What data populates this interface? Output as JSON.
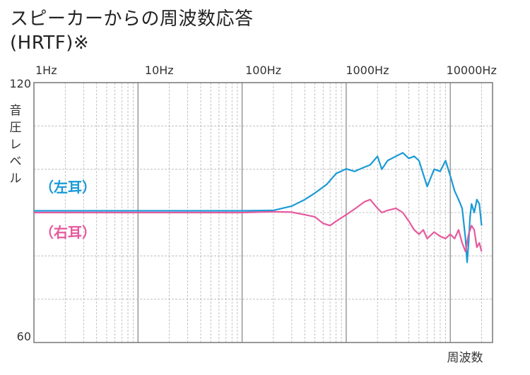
{
  "title_line1": "スピーカーからの周波数応答",
  "title_line2": "(HRTF)※",
  "chart_data": {
    "type": "line",
    "x_scale": "log",
    "xlim": [
      1,
      20000
    ],
    "ylim": [
      60,
      120
    ],
    "x_ticks": [
      1,
      10,
      100,
      1000,
      10000
    ],
    "x_tick_labels": [
      "1Hz",
      "10Hz",
      "100Hz",
      "1000Hz",
      "10000Hz"
    ],
    "y_tick_labels": [
      "120",
      "60"
    ],
    "ylabel": "音圧レベル",
    "xlabel": "周波数",
    "grid": true,
    "series": [
      {
        "name": "（左耳）",
        "color": "#1a9ad6",
        "points": [
          [
            1,
            90.4
          ],
          [
            10,
            90.4
          ],
          [
            100,
            90.4
          ],
          [
            200,
            90.5
          ],
          [
            300,
            91.5
          ],
          [
            400,
            93
          ],
          [
            500,
            94.5
          ],
          [
            650,
            96.5
          ],
          [
            800,
            99
          ],
          [
            1000,
            100.1
          ],
          [
            1200,
            99.5
          ],
          [
            1500,
            100.5
          ],
          [
            1700,
            101
          ],
          [
            2000,
            103
          ],
          [
            2200,
            100
          ],
          [
            2500,
            102
          ],
          [
            3000,
            103
          ],
          [
            3500,
            103.8
          ],
          [
            4000,
            102.5
          ],
          [
            4500,
            103
          ],
          [
            5000,
            102
          ],
          [
            6000,
            96
          ],
          [
            7000,
            100
          ],
          [
            8000,
            99.5
          ],
          [
            9000,
            102
          ],
          [
            10000,
            98.5
          ],
          [
            11000,
            95
          ],
          [
            12000,
            93
          ],
          [
            13000,
            91
          ],
          [
            14000,
            84
          ],
          [
            14500,
            78.5
          ],
          [
            15000,
            83
          ],
          [
            15500,
            89
          ],
          [
            16000,
            92
          ],
          [
            17000,
            90
          ],
          [
            18000,
            93
          ],
          [
            19000,
            92
          ],
          [
            20000,
            87
          ]
        ]
      },
      {
        "name": "（右耳）",
        "color": "#e65a9e",
        "points": [
          [
            1,
            90
          ],
          [
            10,
            90
          ],
          [
            100,
            90
          ],
          [
            200,
            90.2
          ],
          [
            300,
            90.1
          ],
          [
            400,
            89.5
          ],
          [
            500,
            89
          ],
          [
            600,
            87.5
          ],
          [
            700,
            87
          ],
          [
            800,
            88
          ],
          [
            1000,
            89.5
          ],
          [
            1200,
            90.8
          ],
          [
            1500,
            92.5
          ],
          [
            1700,
            93
          ],
          [
            2000,
            91
          ],
          [
            2200,
            90
          ],
          [
            2500,
            90.5
          ],
          [
            3000,
            91
          ],
          [
            3500,
            90
          ],
          [
            4000,
            88
          ],
          [
            4500,
            86
          ],
          [
            5000,
            85
          ],
          [
            5500,
            86
          ],
          [
            6000,
            84
          ],
          [
            7000,
            85.5
          ],
          [
            8000,
            84.5
          ],
          [
            9000,
            84
          ],
          [
            10000,
            85
          ],
          [
            11000,
            84
          ],
          [
            12000,
            86
          ],
          [
            13000,
            83
          ],
          [
            14000,
            81
          ],
          [
            15000,
            85
          ],
          [
            16000,
            87
          ],
          [
            17000,
            86
          ],
          [
            18000,
            82
          ],
          [
            19000,
            83
          ],
          [
            20000,
            81
          ]
        ]
      }
    ]
  }
}
